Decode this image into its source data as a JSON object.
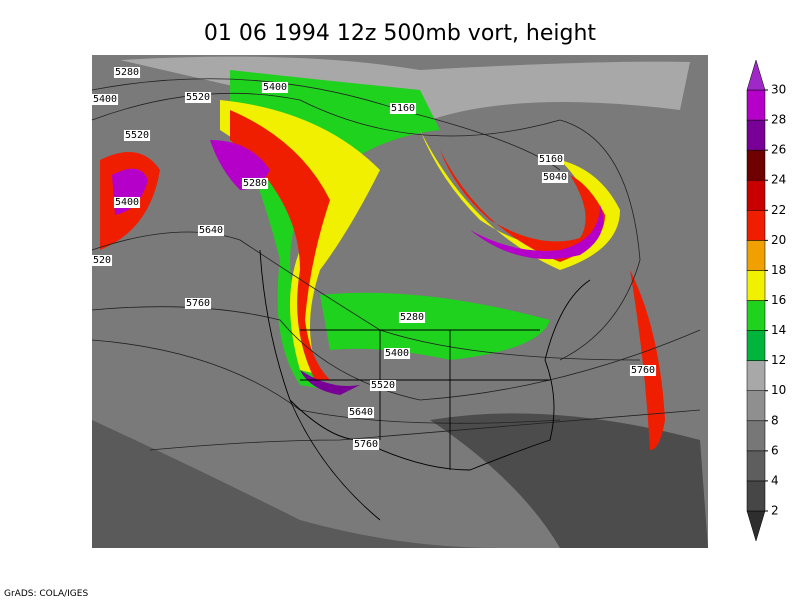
{
  "title": "01 06 1994 12z 500mb vort, height",
  "contour_labels": [
    5280,
    5400,
    5520,
    5400,
    5520,
    5160,
    5160,
    5040,
    5400,
    5280,
    5640,
    520,
    5760,
    5280,
    5400,
    5520,
    5640,
    5760,
    5760
  ],
  "colorbar": {
    "ticks": [
      2,
      4,
      6,
      8,
      10,
      12,
      14,
      16,
      18,
      20,
      22,
      24,
      26,
      28,
      30
    ],
    "colors": [
      "#2e2e2e",
      "#464646",
      "#5e5e5e",
      "#777777",
      "#8f8f8f",
      "#a8a8a8",
      "#00b43c",
      "#1ed21e",
      "#f0f000",
      "#f0a000",
      "#f01e00",
      "#c80000",
      "#6e0000",
      "#780096",
      "#b400c8",
      "#f000f0",
      "#a028c8"
    ]
  },
  "credit": "GrADS: COLA/IGES"
}
